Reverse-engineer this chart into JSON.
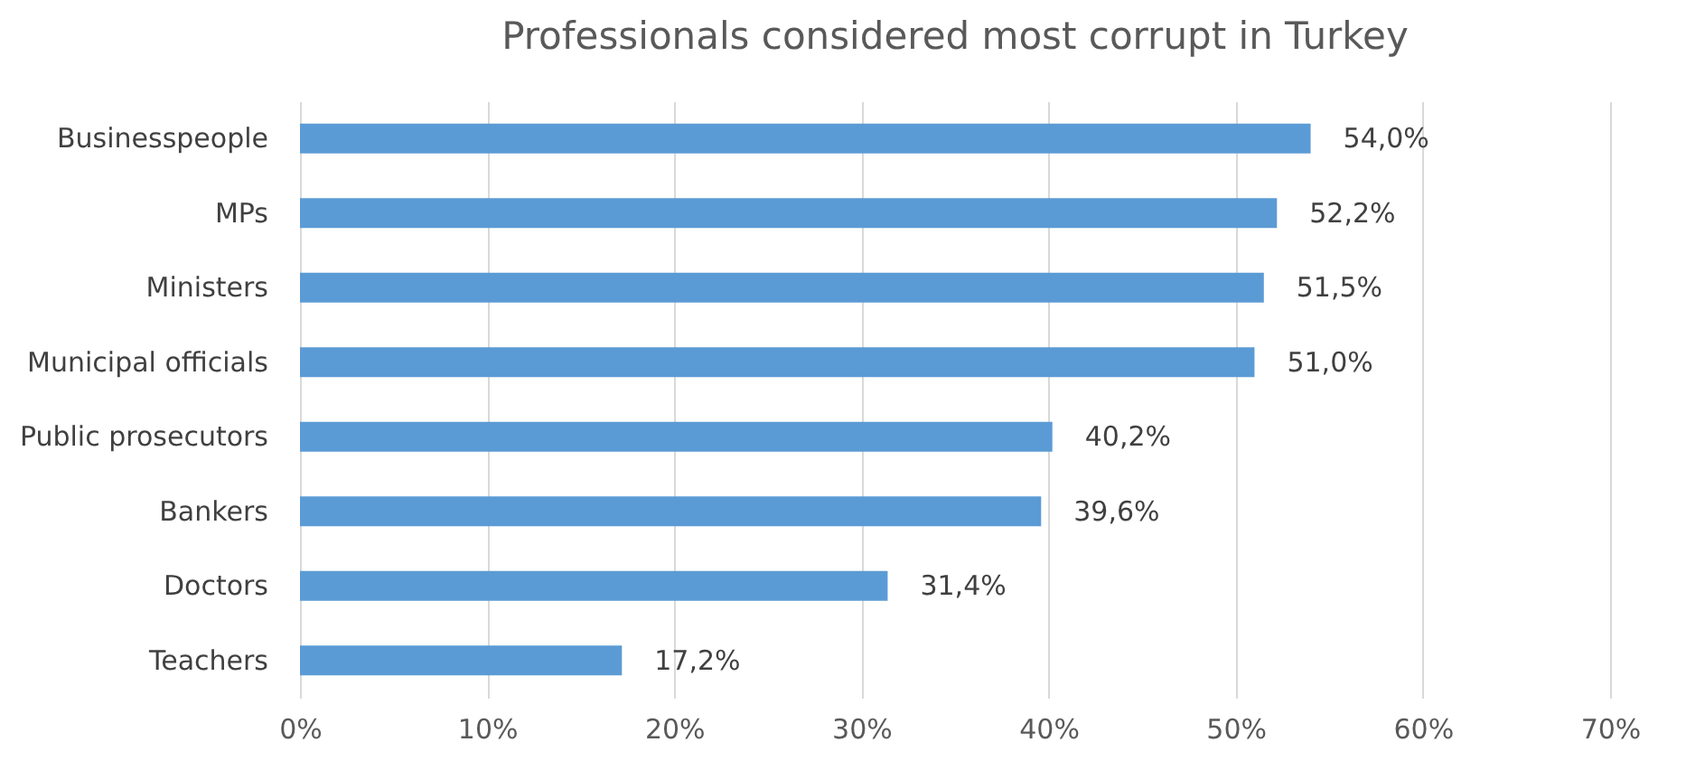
{
  "chart_data": {
    "type": "bar",
    "orientation": "horizontal",
    "title": "Professionals considered most corrupt in Turkey",
    "categories": [
      "Businesspeople",
      "MPs",
      "Ministers",
      "Municipal officials",
      "Public prosecutors",
      "Bankers",
      "Doctors",
      "Teachers"
    ],
    "values": [
      54.0,
      52.2,
      51.5,
      51.0,
      40.2,
      39.6,
      31.4,
      17.2
    ],
    "value_labels": [
      "54,0%",
      "52,2%",
      "51,5%",
      "51,0%",
      "40,2%",
      "39,6%",
      "31,4%",
      "17,2%"
    ],
    "color": "#5b9bd5",
    "xlim": [
      0,
      70
    ],
    "xticks": [
      {
        "value": 0,
        "label": "0%"
      },
      {
        "value": 10,
        "label": "10%"
      },
      {
        "value": 20,
        "label": "20%"
      },
      {
        "value": 30,
        "label": "30%"
      },
      {
        "value": 40,
        "label": "40%"
      },
      {
        "value": 50,
        "label": "50%"
      },
      {
        "value": 60,
        "label": "60%"
      },
      {
        "value": 70,
        "label": "70%"
      }
    ],
    "grid": "x"
  }
}
